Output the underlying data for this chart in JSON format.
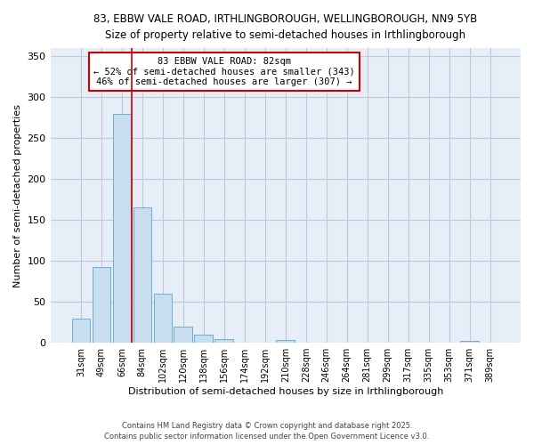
{
  "title_line1": "83, EBBW VALE ROAD, IRTHLINGBOROUGH, WELLINGBOROUGH, NN9 5YB",
  "title_line2": "Size of property relative to semi-detached houses in Irthlingborough",
  "xlabel": "Distribution of semi-detached houses by size in Irthlingborough",
  "ylabel": "Number of semi-detached properties",
  "categories": [
    "31sqm",
    "49sqm",
    "66sqm",
    "84sqm",
    "102sqm",
    "120sqm",
    "138sqm",
    "156sqm",
    "174sqm",
    "192sqm",
    "210sqm",
    "228sqm",
    "246sqm",
    "264sqm",
    "281sqm",
    "299sqm",
    "317sqm",
    "335sqm",
    "353sqm",
    "371sqm",
    "389sqm"
  ],
  "values": [
    30,
    93,
    280,
    165,
    60,
    20,
    10,
    5,
    0,
    0,
    4,
    0,
    0,
    0,
    0,
    0,
    0,
    0,
    0,
    2,
    0
  ],
  "bar_color": "#c8ddf0",
  "bar_edge_color": "#6aaed6",
  "vline_x_index": 3,
  "vline_color": "#cc0000",
  "annotation_line1": "83 EBBW VALE ROAD: 82sqm",
  "annotation_line2": "← 52% of semi-detached houses are smaller (343)",
  "annotation_line3": "46% of semi-detached houses are larger (307) →",
  "annotation_box_color": "#ffffff",
  "annotation_box_edge": "#cc0000",
  "ylim": [
    0,
    360
  ],
  "yticks": [
    0,
    50,
    100,
    150,
    200,
    250,
    300,
    350
  ],
  "footer_line1": "Contains HM Land Registry data © Crown copyright and database right 2025.",
  "footer_line2": "Contains public sector information licensed under the Open Government Licence v3.0.",
  "bg_color": "#ffffff",
  "plot_bg_color": "#e8eef8",
  "grid_color": "#c0c8d8"
}
